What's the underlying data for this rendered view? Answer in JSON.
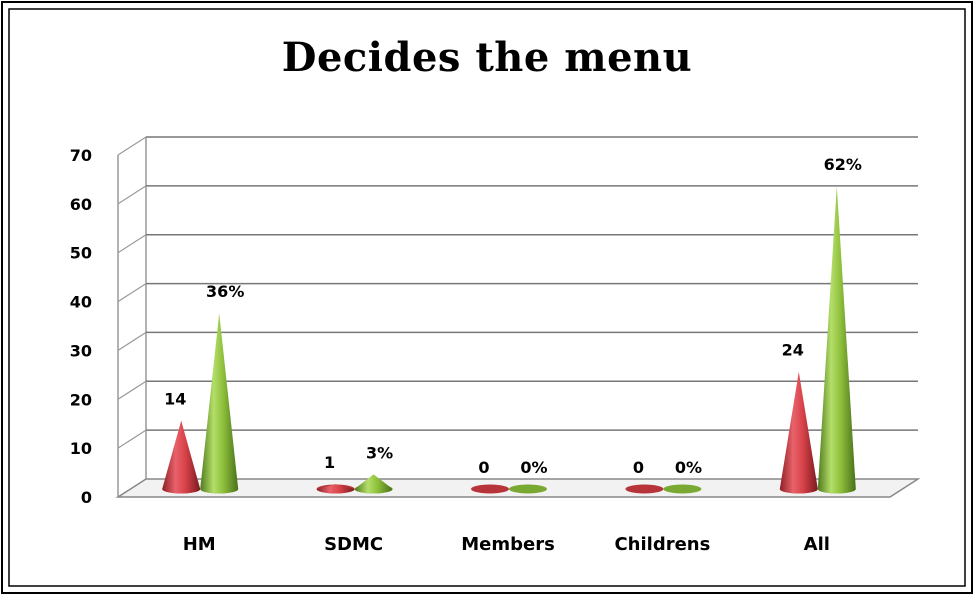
{
  "chart_data": {
    "type": "bar",
    "title": "Decides the menu",
    "categories": [
      "HM",
      "SDMC",
      "Members",
      "Childrens",
      "All"
    ],
    "series": [
      {
        "values": [
          14,
          1,
          0,
          0,
          24
        ],
        "labels": [
          "14",
          "1",
          "0",
          "0",
          "24"
        ],
        "color": "#d9434a"
      },
      {
        "values": [
          36,
          3,
          0,
          0,
          62
        ],
        "labels": [
          "36%",
          "3%",
          "0%",
          "0%",
          "62%"
        ],
        "color": "#8fc03c"
      }
    ],
    "y_ticks": [
      "0",
      "10",
      "20",
      "30",
      "40",
      "50",
      "60",
      "70"
    ],
    "ylim": [
      0,
      70
    ],
    "grid": true,
    "shape": "cone",
    "legend": "none"
  }
}
